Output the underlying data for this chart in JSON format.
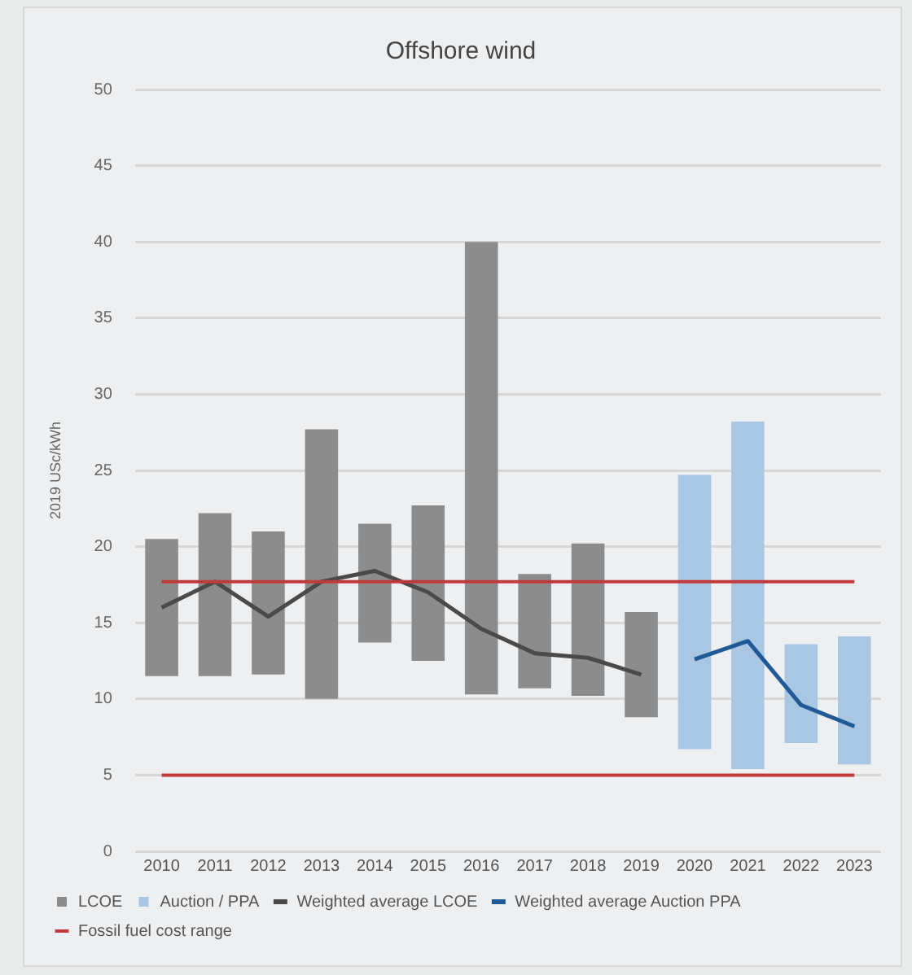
{
  "chart_data": {
    "type": "bar",
    "title": "Offshore wind",
    "ylabel": "2019 USc/kWh",
    "categories": [
      "2010",
      "2011",
      "2012",
      "2013",
      "2014",
      "2015",
      "2016",
      "2017",
      "2018",
      "2019",
      "2020",
      "2021",
      "2022",
      "2023"
    ],
    "series": [
      {
        "name": "LCOE",
        "color": "#8c8c8c",
        "base": [
          11.5,
          11.5,
          11.6,
          10,
          13.7,
          12.5,
          10.3,
          10.7,
          10.2,
          8.8,
          null,
          null,
          null,
          null
        ],
        "values": [
          9,
          10.7,
          9.4,
          17.7,
          7.8,
          10.2,
          29.7,
          7.5,
          10,
          6.9,
          null,
          null,
          null,
          null
        ]
      },
      {
        "name": "Auction / PPA",
        "color": "#a9c6e3",
        "base": [
          null,
          null,
          null,
          null,
          null,
          null,
          null,
          null,
          null,
          null,
          6.7,
          5.4,
          7.1,
          5.7
        ],
        "values": [
          null,
          null,
          null,
          null,
          null,
          null,
          null,
          null,
          null,
          null,
          18,
          22.8,
          6.5,
          8.4
        ]
      },
      {
        "name": "Weighted average LCOE",
        "type": "line",
        "color": "#4a4a4a",
        "values": [
          16,
          17.7,
          15.4,
          17.7,
          18.4,
          17,
          14.6,
          13,
          12.7,
          11.6,
          null,
          null,
          null,
          null
        ]
      },
      {
        "name": "Weighted average Auction PPA",
        "type": "line",
        "color": "#1f5a96",
        "values": [
          null,
          null,
          null,
          null,
          null,
          null,
          null,
          null,
          null,
          null,
          12.6,
          13.8,
          9.6,
          8.2
        ]
      }
    ],
    "ref_lines": [
      {
        "axis": "y",
        "value": 17.7,
        "label": "Fossil fuel cost range",
        "color": "#c0393b"
      },
      {
        "axis": "y",
        "value": 5,
        "color": "#c0393b"
      }
    ],
    "ylim": [
      0,
      50
    ],
    "yticks": [
      0,
      5,
      10,
      15,
      20,
      25,
      30,
      35,
      40,
      45,
      50
    ],
    "grid": "y",
    "legend": "bottom",
    "marker": "none",
    "line_style": "solid"
  }
}
